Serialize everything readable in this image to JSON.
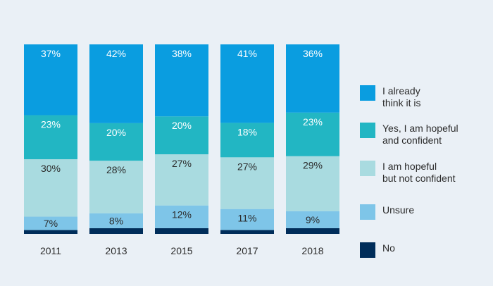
{
  "chart_data": {
    "type": "bar",
    "stacked": true,
    "categories": [
      "2011",
      "2013",
      "2015",
      "2017",
      "2018"
    ],
    "series": [
      {
        "name": "No",
        "values": [
          2,
          3,
          3,
          2,
          3
        ],
        "color": "#002d5a",
        "label_color": "#ffffff"
      },
      {
        "name": "Unsure",
        "values": [
          7,
          8,
          12,
          11,
          9
        ],
        "color": "#7ec5e8",
        "label_color": "#2b2b2b"
      },
      {
        "name": "I am hopeful\nbut not confident",
        "values": [
          30,
          28,
          27,
          27,
          29
        ],
        "color": "#a9dbe0",
        "label_color": "#2b2b2b"
      },
      {
        "name": "Yes, I am hopeful\nand confident",
        "values": [
          23,
          20,
          20,
          18,
          23
        ],
        "color": "#22b6c3",
        "label_color": "#ffffff"
      },
      {
        "name": "I already\nthink it is",
        "values": [
          37,
          42,
          38,
          41,
          36
        ],
        "color": "#0a9de0",
        "label_color": "#ffffff"
      }
    ],
    "data_labels": [
      [
        "",
        "",
        "",
        "",
        ""
      ],
      [
        "7%",
        "8%",
        "12%",
        "11%",
        "9%"
      ],
      [
        "30%",
        "28%",
        "27%",
        "27%",
        "29%"
      ],
      [
        "23%",
        "20%",
        "20%",
        "18%",
        "23%"
      ],
      [
        "37%",
        "42%",
        "38%",
        "41%",
        "36%"
      ]
    ],
    "ylim": [
      0,
      100
    ],
    "grid": false,
    "legend_placement": "right"
  }
}
